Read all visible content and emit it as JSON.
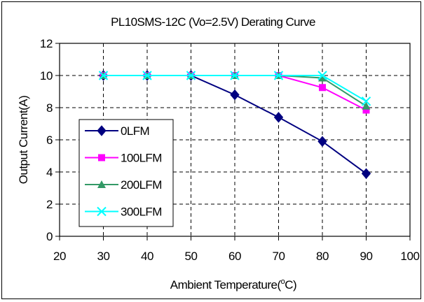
{
  "chart_data": {
    "type": "line",
    "title": "PL10SMS-12C (Vo=2.5V)  Derating Curve",
    "xlabel": "Ambient Temperature(",
    "xlabel_sup": "o",
    "xlabel_unit": "C)",
    "ylabel": "Output Current(A)",
    "xlim": [
      20,
      100
    ],
    "ylim": [
      0,
      12
    ],
    "xticks": [
      "20",
      "30",
      "40",
      "50",
      "60",
      "70",
      "80",
      "90",
      "100"
    ],
    "yticks": [
      "0",
      "2",
      "4",
      "6",
      "8",
      "10",
      "12"
    ],
    "grid": "dashed",
    "legend_position": "left-inside",
    "x": [
      30,
      40,
      50,
      60,
      70,
      80,
      90
    ],
    "series": [
      {
        "name": "0LFM",
        "color": "#000080",
        "marker": "diamond",
        "values": [
          10,
          10,
          10,
          8.8,
          7.4,
          5.9,
          3.9
        ]
      },
      {
        "name": "100LFM",
        "color": "#ff00ff",
        "marker": "square",
        "values": [
          10,
          10,
          10,
          10,
          10,
          9.25,
          7.85
        ]
      },
      {
        "name": "200LFM",
        "color": "#339966",
        "marker": "triangle",
        "values": [
          10,
          10,
          10,
          10,
          10,
          9.85,
          8.1
        ]
      },
      {
        "name": "300LFM",
        "color": "#00ffff",
        "marker": "x",
        "values": [
          10,
          10,
          10,
          10,
          10,
          10,
          8.4
        ]
      }
    ]
  }
}
